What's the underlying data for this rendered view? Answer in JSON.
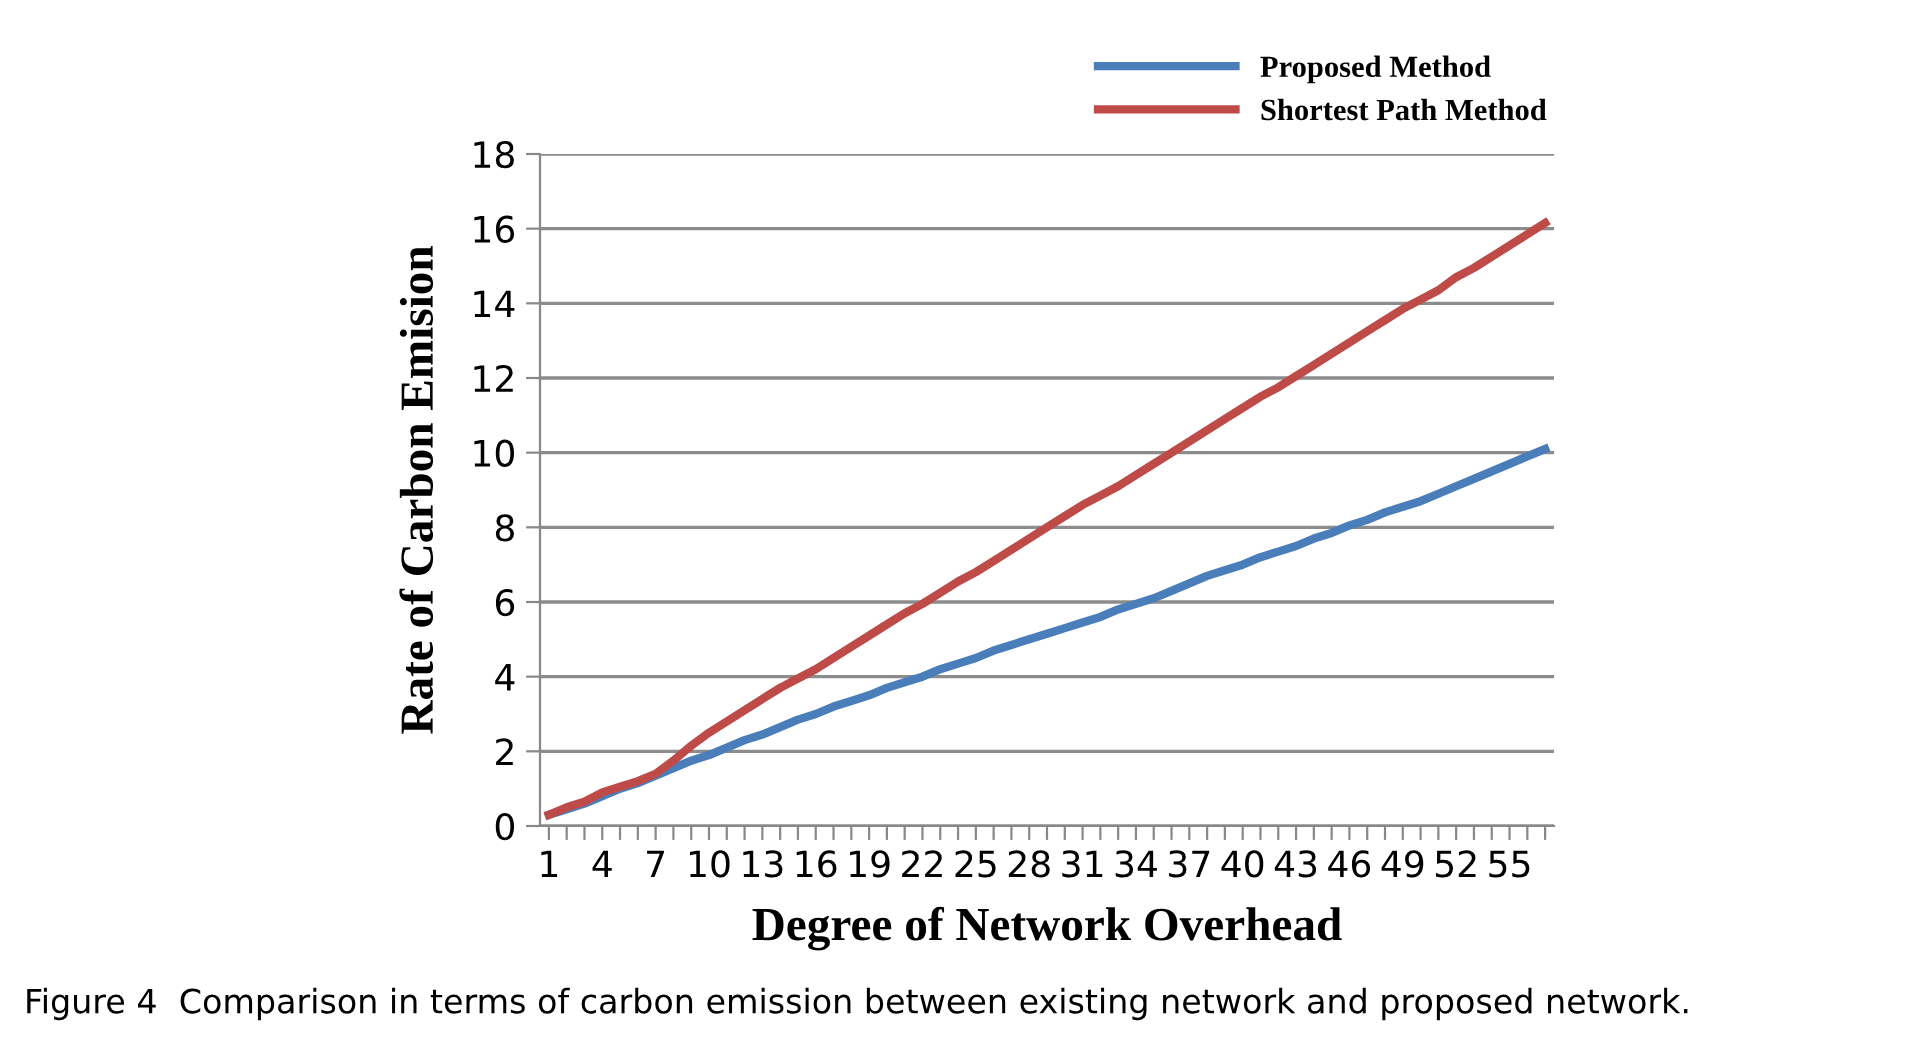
{
  "chart_data": {
    "type": "line",
    "xlabel": "Degree of Network Overhead",
    "ylabel": "Rate of Carbon Emision",
    "categories": [
      "1",
      null,
      null,
      "4",
      null,
      null,
      "7",
      null,
      null,
      "10",
      null,
      null,
      "13",
      null,
      null,
      "16",
      null,
      null,
      "19",
      null,
      null,
      "22",
      null,
      null,
      "25",
      null,
      null,
      "28",
      null,
      null,
      "31",
      null,
      null,
      "34",
      null,
      null,
      "37",
      null,
      null,
      "40",
      null,
      null,
      "43",
      null,
      null,
      "46",
      null,
      null,
      "49",
      null,
      null,
      "52",
      null,
      null,
      "55",
      null,
      null
    ],
    "series": [
      {
        "name": "Proposed Method",
        "color": "#4a7ebb",
        "values": [
          0.3,
          0.45,
          0.6,
          0.8,
          1.0,
          1.15,
          1.35,
          1.55,
          1.75,
          1.9,
          2.1,
          2.3,
          2.45,
          2.65,
          2.85,
          3.0,
          3.2,
          3.35,
          3.5,
          3.7,
          3.85,
          4.0,
          4.2,
          4.35,
          4.5,
          4.7,
          4.85,
          5.0,
          5.15,
          5.3,
          5.45,
          5.6,
          5.8,
          5.95,
          6.1,
          6.3,
          6.5,
          6.7,
          6.85,
          7.0,
          7.2,
          7.35,
          7.5,
          7.7,
          7.85,
          8.05,
          8.2,
          8.4,
          8.55,
          8.7,
          8.9,
          9.1,
          9.3,
          9.5,
          9.7,
          9.9,
          10.1
        ]
      },
      {
        "name": "Shortest Path Method",
        "color": "#be4b48",
        "values": [
          0.3,
          0.5,
          0.65,
          0.9,
          1.05,
          1.2,
          1.4,
          1.75,
          2.15,
          2.5,
          2.8,
          3.1,
          3.4,
          3.7,
          3.95,
          4.2,
          4.5,
          4.8,
          5.1,
          5.4,
          5.7,
          5.95,
          6.25,
          6.55,
          6.8,
          7.1,
          7.4,
          7.7,
          8.0,
          8.3,
          8.6,
          8.85,
          9.1,
          9.4,
          9.7,
          10.0,
          10.3,
          10.6,
          10.9,
          11.2,
          11.5,
          11.75,
          12.05,
          12.35,
          12.65,
          12.95,
          13.25,
          13.55,
          13.85,
          14.1,
          14.35,
          14.7,
          14.95,
          15.25,
          15.55,
          15.85,
          16.15
        ]
      }
    ],
    "ylim": [
      0,
      18
    ],
    "yticks": [
      0,
      2,
      4,
      6,
      8,
      10,
      12,
      14,
      16,
      18
    ],
    "grid": "y",
    "legend": "top right",
    "marker": "none",
    "line_style": "solid",
    "annotations": [
      "Figure 4  Comparison in terms of carbon emission between existing network and proposed network."
    ]
  }
}
